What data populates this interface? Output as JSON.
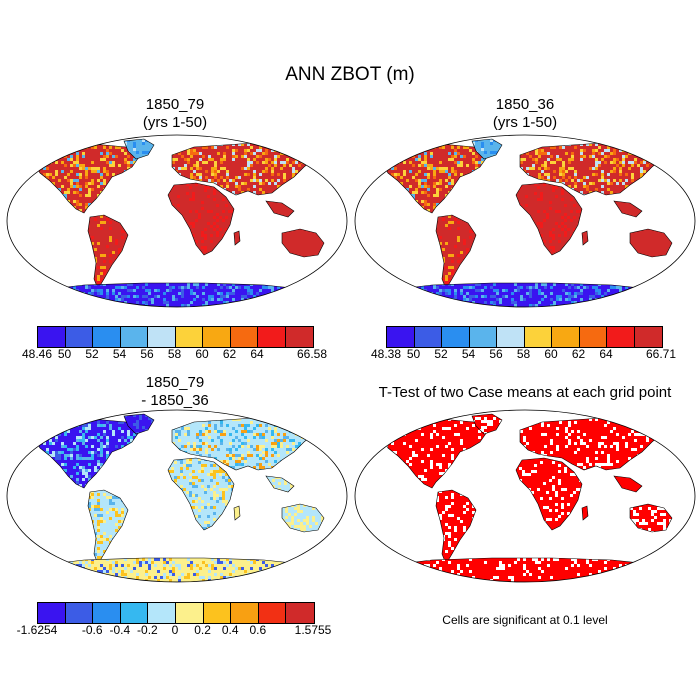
{
  "title": "ANN ZBOT (m)",
  "panels": [
    {
      "title_line1": "1850_79",
      "title_line2": "(yrs 1-50)",
      "colorbar": {
        "colors": [
          "#3a14f0",
          "#3c5ce6",
          "#2a8ef0",
          "#5ab4ec",
          "#bfe2f6",
          "#fcd23a",
          "#f8a812",
          "#f66a10",
          "#f21b1b",
          "#d02a2a"
        ],
        "labels": [
          "48.46",
          "50",
          "52",
          "54",
          "56",
          "58",
          "60",
          "62",
          "64",
          "66.58"
        ]
      }
    },
    {
      "title_line1": "1850_36",
      "title_line2": "(yrs 1-50)",
      "colorbar": {
        "colors": [
          "#3a14f0",
          "#3c5ce6",
          "#2a8ef0",
          "#5ab4ec",
          "#bfe2f6",
          "#fcd23a",
          "#f8a812",
          "#f66a10",
          "#f21b1b",
          "#d02a2a"
        ],
        "labels": [
          "48.38",
          "50",
          "52",
          "54",
          "56",
          "58",
          "60",
          "62",
          "64",
          "66.71"
        ]
      }
    },
    {
      "title_line1": "1850_79",
      "title_line2": "- 1850_36",
      "colorbar": {
        "colors": [
          "#3a14f0",
          "#3c5ce6",
          "#2a8ef0",
          "#36b8f0",
          "#b4e6fa",
          "#fcf08c",
          "#fcc21e",
          "#f8a012",
          "#f23014",
          "#d02a2a"
        ],
        "labels": [
          "-1.6254",
          "-0.6",
          "-0.4",
          "-0.2",
          "0",
          "0.2",
          "0.4",
          "0.6",
          "1.5755"
        ]
      }
    },
    {
      "title_line1": "T-Test of two Case means at each grid point",
      "note": "Cells are significant at 0.1 level"
    }
  ]
}
